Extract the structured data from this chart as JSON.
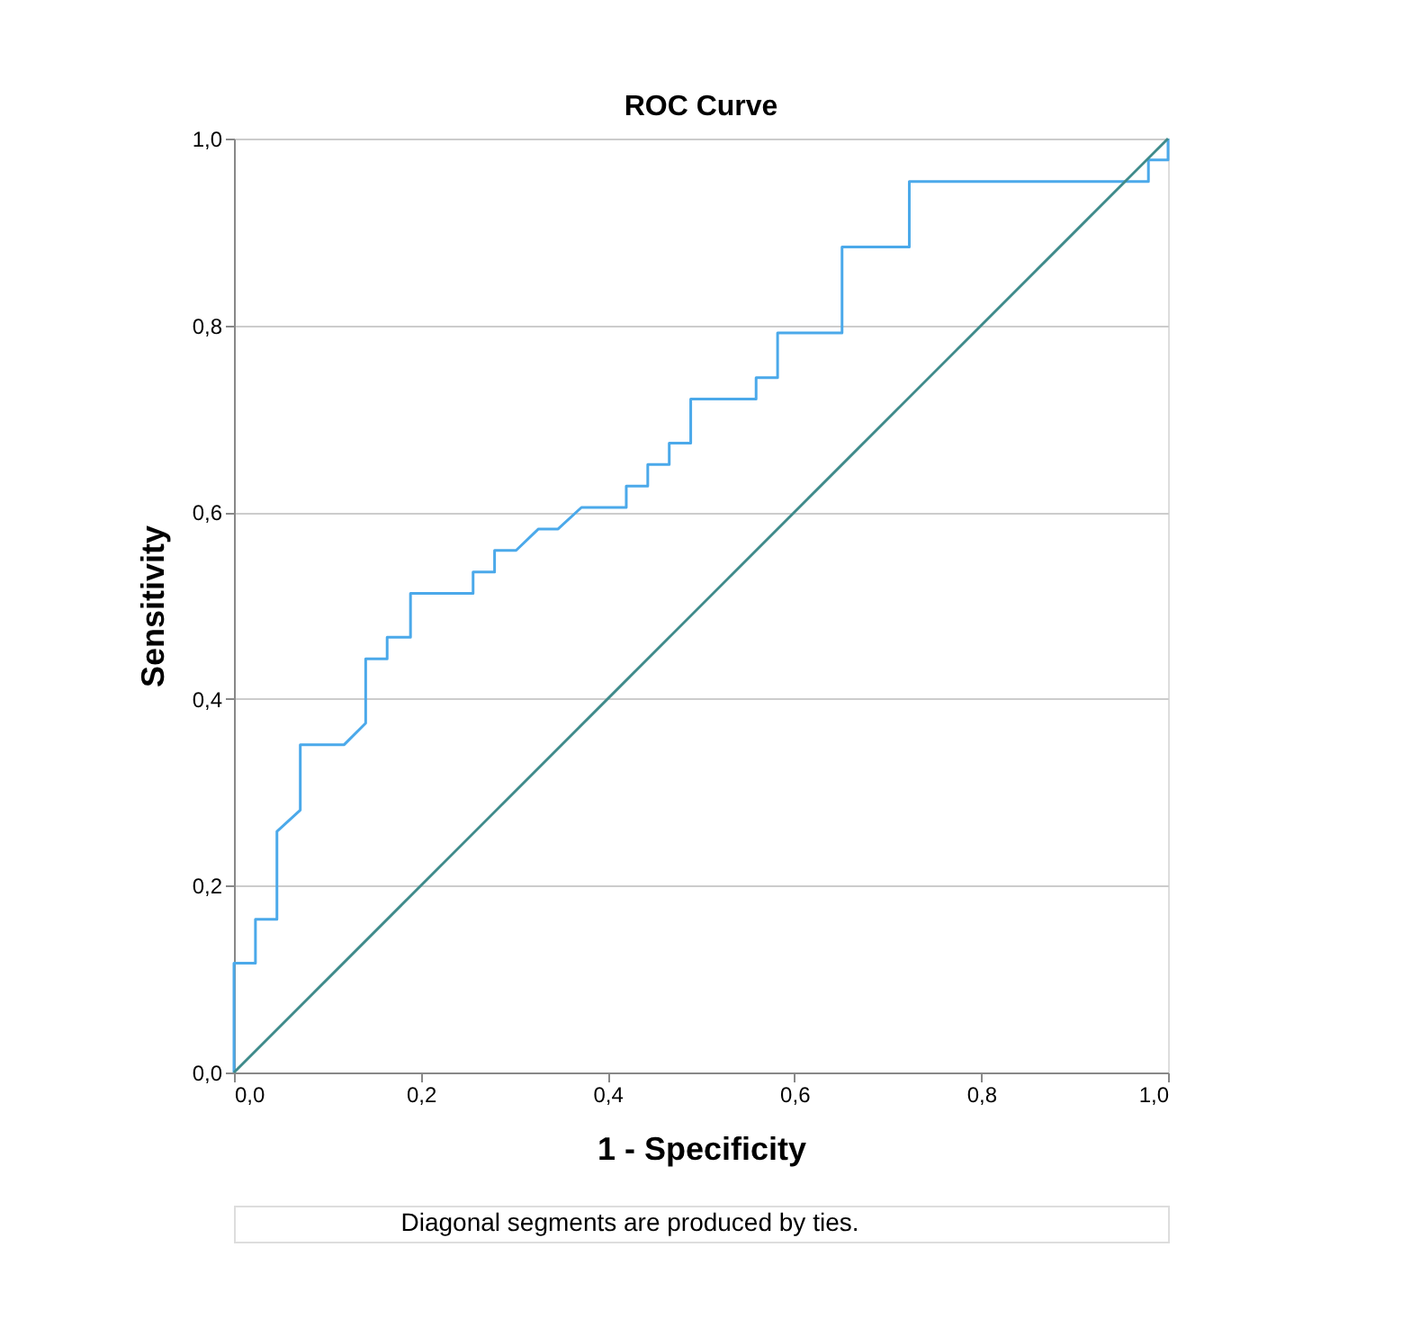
{
  "chart_data": {
    "type": "line",
    "title": "ROC Curve",
    "xlabel": "1 - Specificity",
    "ylabel": "Sensitivity",
    "xlim": [
      0,
      1
    ],
    "ylim": [
      0,
      1
    ],
    "xticks": [
      {
        "value": 0,
        "label": "0,0"
      },
      {
        "value": 0.2,
        "label": "0,2"
      },
      {
        "value": 0.4,
        "label": "0,4"
      },
      {
        "value": 0.6,
        "label": "0,6"
      },
      {
        "value": 0.8,
        "label": "0,8"
      },
      {
        "value": 1,
        "label": "1,0"
      }
    ],
    "yticks": [
      {
        "value": 0,
        "label": "0,0"
      },
      {
        "value": 0.2,
        "label": "0,2"
      },
      {
        "value": 0.4,
        "label": "0,4"
      },
      {
        "value": 0.6,
        "label": "0,6"
      },
      {
        "value": 0.8,
        "label": "0,8"
      },
      {
        "value": 1,
        "label": "1,0"
      }
    ],
    "grid": "y",
    "marker": "none",
    "line_style": "solid",
    "series": [
      {
        "color": "#4ba9ea",
        "x": [
          0,
          0,
          0.023,
          0.023,
          0.046,
          0.046,
          0.071,
          0.071,
          0.118,
          0.141,
          0.141,
          0.164,
          0.164,
          0.189,
          0.189,
          0.256,
          0.256,
          0.279,
          0.279,
          0.302,
          0.326,
          0.347,
          0.372,
          0.42,
          0.42,
          0.443,
          0.443,
          0.466,
          0.466,
          0.489,
          0.489,
          0.559,
          0.559,
          0.582,
          0.582,
          0.651,
          0.651,
          0.723,
          0.723,
          0.979,
          0.979,
          1,
          1
        ],
        "values": [
          0,
          0.117,
          0.117,
          0.164,
          0.164,
          0.258,
          0.281,
          0.351,
          0.351,
          0.374,
          0.443,
          0.443,
          0.466,
          0.466,
          0.513,
          0.513,
          0.536,
          0.536,
          0.559,
          0.559,
          0.582,
          0.582,
          0.605,
          0.605,
          0.628,
          0.628,
          0.651,
          0.651,
          0.674,
          0.674,
          0.721,
          0.721,
          0.744,
          0.744,
          0.792,
          0.792,
          0.884,
          0.884,
          0.954,
          0.954,
          0.977,
          0.977,
          1
        ]
      },
      {
        "color": "#3f8b8b",
        "x": [
          0,
          1
        ],
        "values": [
          0,
          1
        ]
      }
    ],
    "annotations": [
      "Diagonal segments are produced by ties."
    ]
  }
}
